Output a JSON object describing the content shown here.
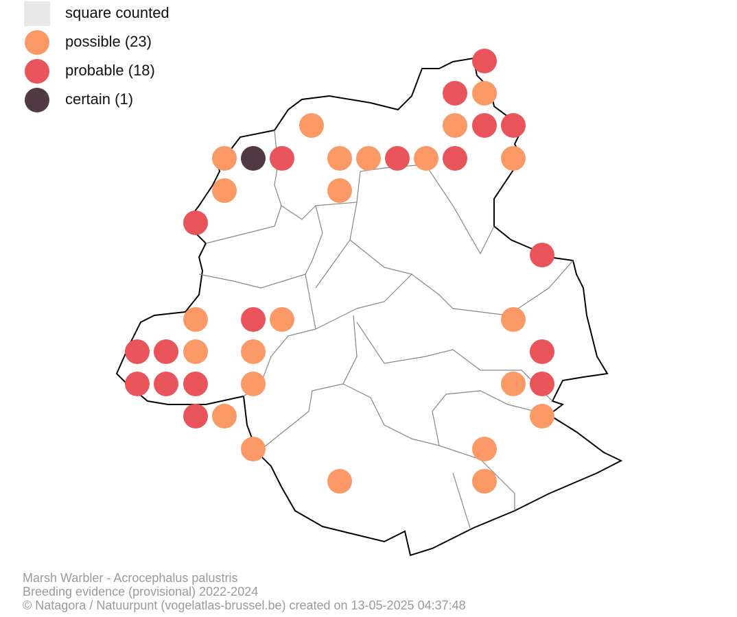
{
  "legend": [
    {
      "label": "square counted",
      "color": "#e8e8e8"
    },
    {
      "label": "possible (23)",
      "color": "#fa9966"
    },
    {
      "label": "probable (18)",
      "color": "#e9545a"
    },
    {
      "label": "certain (1)",
      "color": "#523a45"
    }
  ],
  "footer": {
    "line1": "Marsh Warbler - Acrocephalus palustris",
    "line2": "Breeding evidence (provisional) 2022-2024",
    "line3": "© Natagora / Natuurpunt (vogelatlas-brussel.be) created on 13-05-2025 04:37:48"
  }
}
